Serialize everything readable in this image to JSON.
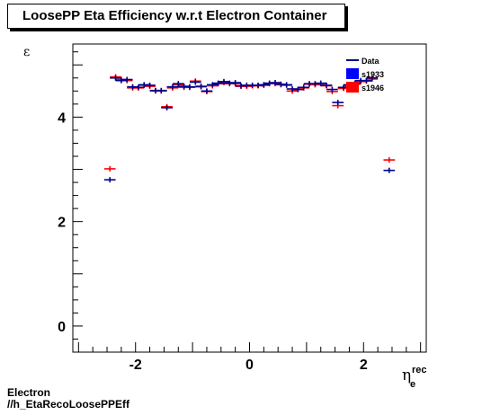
{
  "title": "LoosePP Eta Efficiency w.r.t Electron Container",
  "footer": {
    "line1": "Electron",
    "line2": "//h_EtaRecoLoosePPEff"
  },
  "chart_data": {
    "type": "scatter",
    "ylabel": "ε",
    "xlabel": "η",
    "xlabel_sup": "rec",
    "xlabel_sub": "e",
    "xlim": [
      -3.1,
      3.1
    ],
    "ylim": [
      -0.5,
      5.4
    ],
    "xticks": [
      -2,
      0,
      2
    ],
    "yticks": [
      0,
      2,
      4
    ],
    "bin_halfwidth": 0.1,
    "legend": {
      "position": "top-right",
      "entries": [
        {
          "label": "Data",
          "marker": "line",
          "color": "#00007f"
        },
        {
          "label": "s1933",
          "marker": "box",
          "color": "#0000ff"
        },
        {
          "label": "s1946",
          "marker": "box",
          "color": "#ff0000"
        }
      ]
    },
    "series": [
      {
        "name": "s1933",
        "color": "#00008b",
        "points": [
          [
            -2.45,
            2.8
          ],
          [
            -2.35,
            4.75
          ],
          [
            -2.25,
            4.7
          ],
          [
            -2.15,
            4.72
          ],
          [
            -2.05,
            4.58
          ],
          [
            -1.95,
            4.57
          ],
          [
            -1.85,
            4.62
          ],
          [
            -1.75,
            4.61
          ],
          [
            -1.65,
            4.51
          ],
          [
            -1.55,
            4.51
          ],
          [
            -1.45,
            4.18
          ],
          [
            -1.35,
            4.58
          ],
          [
            -1.25,
            4.64
          ],
          [
            -1.15,
            4.59
          ],
          [
            -1.05,
            4.58
          ],
          [
            -0.95,
            4.67
          ],
          [
            -0.85,
            4.59
          ],
          [
            -0.75,
            4.5
          ],
          [
            -0.65,
            4.62
          ],
          [
            -0.55,
            4.65
          ],
          [
            -0.45,
            4.68
          ],
          [
            -0.35,
            4.65
          ],
          [
            -0.25,
            4.66
          ],
          [
            -0.15,
            4.6
          ],
          [
            -0.05,
            4.61
          ],
          [
            0.05,
            4.61
          ],
          [
            0.15,
            4.61
          ],
          [
            0.25,
            4.62
          ],
          [
            0.35,
            4.65
          ],
          [
            0.45,
            4.66
          ],
          [
            0.55,
            4.63
          ],
          [
            0.65,
            4.62
          ],
          [
            0.75,
            4.54
          ],
          [
            0.85,
            4.53
          ],
          [
            0.95,
            4.57
          ],
          [
            1.05,
            4.64
          ],
          [
            1.15,
            4.64
          ],
          [
            1.25,
            4.65
          ],
          [
            1.35,
            4.61
          ],
          [
            1.45,
            4.53
          ],
          [
            1.55,
            4.28
          ],
          [
            1.65,
            4.57
          ],
          [
            1.75,
            4.62
          ],
          [
            1.85,
            4.65
          ],
          [
            1.95,
            4.7
          ],
          [
            2.05,
            4.7
          ],
          [
            2.15,
            4.75
          ],
          [
            2.45,
            2.98
          ]
        ]
      },
      {
        "name": "s1946",
        "color": "#ff0000",
        "points": [
          [
            -2.45,
            3.01
          ],
          [
            -2.35,
            4.77
          ],
          [
            -2.25,
            4.72
          ],
          [
            -2.15,
            4.7
          ],
          [
            -2.05,
            4.56
          ],
          [
            -1.95,
            4.56
          ],
          [
            -1.85,
            4.61
          ],
          [
            -1.75,
            4.59
          ],
          [
            -1.65,
            4.5
          ],
          [
            -1.55,
            4.5
          ],
          [
            -1.45,
            4.2
          ],
          [
            -1.35,
            4.56
          ],
          [
            -1.25,
            4.62
          ],
          [
            -1.15,
            4.57
          ],
          [
            -1.05,
            4.57
          ],
          [
            -0.95,
            4.69
          ],
          [
            -0.85,
            4.58
          ],
          [
            -0.75,
            4.49
          ],
          [
            -0.65,
            4.6
          ],
          [
            -0.55,
            4.64
          ],
          [
            -0.45,
            4.66
          ],
          [
            -0.35,
            4.64
          ],
          [
            -0.25,
            4.64
          ],
          [
            -0.15,
            4.59
          ],
          [
            -0.05,
            4.59
          ],
          [
            0.05,
            4.6
          ],
          [
            0.15,
            4.6
          ],
          [
            0.25,
            4.61
          ],
          [
            0.35,
            4.64
          ],
          [
            0.45,
            4.64
          ],
          [
            0.55,
            4.62
          ],
          [
            0.65,
            4.61
          ],
          [
            0.75,
            4.5
          ],
          [
            0.85,
            4.53
          ],
          [
            0.95,
            4.56
          ],
          [
            1.05,
            4.63
          ],
          [
            1.15,
            4.62
          ],
          [
            1.25,
            4.64
          ],
          [
            1.35,
            4.6
          ],
          [
            1.45,
            4.49
          ],
          [
            1.55,
            4.22
          ],
          [
            1.65,
            4.55
          ],
          [
            1.75,
            4.6
          ],
          [
            1.85,
            4.63
          ],
          [
            1.95,
            4.68
          ],
          [
            2.05,
            4.69
          ],
          [
            2.15,
            4.73
          ],
          [
            2.45,
            3.18
          ]
        ]
      }
    ]
  }
}
